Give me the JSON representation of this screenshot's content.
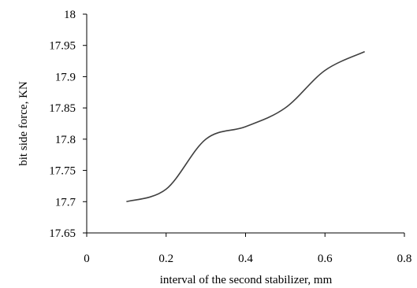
{
  "chart_data": {
    "type": "line",
    "title": "",
    "xlabel": "interval of the second stabilizer, mm",
    "ylabel": "bit side force, KN",
    "xlim": [
      0,
      0.8
    ],
    "ylim": [
      17.65,
      18
    ],
    "x_ticks": [
      "0",
      "0.2",
      "0.4",
      "0.6",
      "0.8"
    ],
    "y_ticks": [
      "17.65",
      "17.7",
      "17.75",
      "17.8",
      "17.85",
      "17.9",
      "17.95",
      "18"
    ],
    "grid": false,
    "legend": "none",
    "series": [
      {
        "x": [
          0.1,
          0.2,
          0.3,
          0.4,
          0.5,
          0.6,
          0.7
        ],
        "y": [
          17.7,
          17.72,
          17.8,
          17.82,
          17.85,
          17.91,
          17.94
        ],
        "color": "#404040"
      }
    ]
  }
}
